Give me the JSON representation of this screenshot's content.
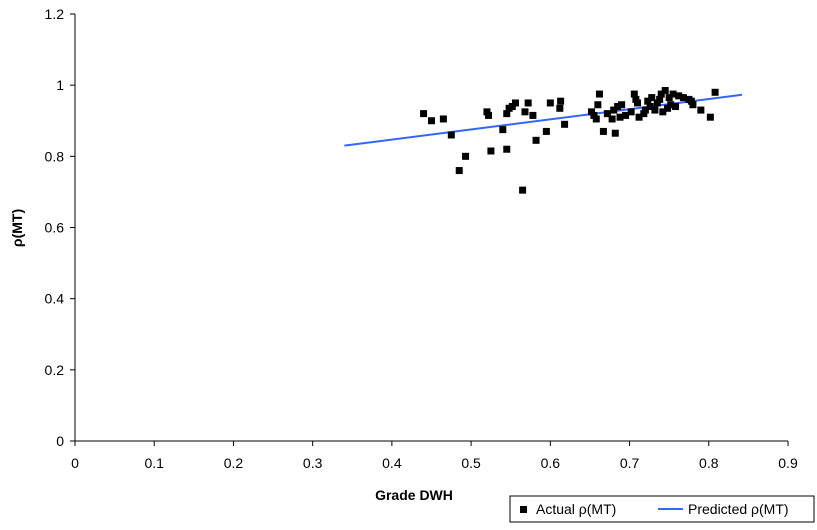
{
  "chart_data": {
    "type": "scatter",
    "title": "",
    "xlabel": "Grade DWH",
    "ylabel": "ρ(MT)",
    "xlim": [
      0,
      0.9
    ],
    "ylim": [
      0,
      1.2
    ],
    "x_ticks": [
      0,
      0.1,
      0.2,
      0.3,
      0.4,
      0.5,
      0.6,
      0.7,
      0.8,
      0.9
    ],
    "x_tick_labels": [
      "0",
      "0.1",
      "0.2",
      "0.3",
      "0.4",
      "0.5",
      "0.6",
      "0.7",
      "0.8",
      "0.9"
    ],
    "y_ticks": [
      0,
      0.2,
      0.4,
      0.6,
      0.8,
      1.0,
      1.2
    ],
    "y_tick_labels": [
      "0",
      "0.2",
      "0.4",
      "0.6",
      "0.8",
      "1",
      "1.2"
    ],
    "grid": false,
    "legend_position": "bottom-right",
    "series": [
      {
        "name": "Actual ρ(MT)",
        "kind": "scatter",
        "color": "#000000",
        "marker": "square",
        "points": [
          [
            0.44,
            0.92
          ],
          [
            0.45,
            0.9
          ],
          [
            0.465,
            0.905
          ],
          [
            0.475,
            0.86
          ],
          [
            0.485,
            0.76
          ],
          [
            0.493,
            0.8
          ],
          [
            0.52,
            0.925
          ],
          [
            0.522,
            0.915
          ],
          [
            0.525,
            0.815
          ],
          [
            0.54,
            0.875
          ],
          [
            0.545,
            0.92
          ],
          [
            0.545,
            0.82
          ],
          [
            0.548,
            0.935
          ],
          [
            0.552,
            0.94
          ],
          [
            0.556,
            0.95
          ],
          [
            0.565,
            0.705
          ],
          [
            0.568,
            0.925
          ],
          [
            0.572,
            0.95
          ],
          [
            0.578,
            0.915
          ],
          [
            0.582,
            0.845
          ],
          [
            0.595,
            0.87
          ],
          [
            0.6,
            0.95
          ],
          [
            0.612,
            0.935
          ],
          [
            0.613,
            0.955
          ],
          [
            0.618,
            0.89
          ],
          [
            0.652,
            0.925
          ],
          [
            0.655,
            0.915
          ],
          [
            0.658,
            0.905
          ],
          [
            0.66,
            0.945
          ],
          [
            0.662,
            0.975
          ],
          [
            0.667,
            0.87
          ],
          [
            0.672,
            0.92
          ],
          [
            0.678,
            0.905
          ],
          [
            0.68,
            0.93
          ],
          [
            0.682,
            0.865
          ],
          [
            0.685,
            0.94
          ],
          [
            0.688,
            0.91
          ],
          [
            0.69,
            0.945
          ],
          [
            0.695,
            0.915
          ],
          [
            0.702,
            0.925
          ],
          [
            0.706,
            0.975
          ],
          [
            0.708,
            0.96
          ],
          [
            0.71,
            0.95
          ],
          [
            0.712,
            0.91
          ],
          [
            0.718,
            0.92
          ],
          [
            0.72,
            0.93
          ],
          [
            0.723,
            0.955
          ],
          [
            0.726,
            0.94
          ],
          [
            0.728,
            0.965
          ],
          [
            0.732,
            0.93
          ],
          [
            0.735,
            0.95
          ],
          [
            0.738,
            0.96
          ],
          [
            0.74,
            0.975
          ],
          [
            0.742,
            0.925
          ],
          [
            0.745,
            0.985
          ],
          [
            0.748,
            0.935
          ],
          [
            0.75,
            0.965
          ],
          [
            0.752,
            0.945
          ],
          [
            0.755,
            0.975
          ],
          [
            0.758,
            0.94
          ],
          [
            0.762,
            0.97
          ],
          [
            0.768,
            0.965
          ],
          [
            0.775,
            0.96
          ],
          [
            0.778,
            0.955
          ],
          [
            0.78,
            0.945
          ],
          [
            0.79,
            0.93
          ],
          [
            0.802,
            0.91
          ],
          [
            0.808,
            0.98
          ]
        ]
      },
      {
        "name": "Predicted ρ(MT)",
        "kind": "line",
        "color": "#3366ff",
        "points": [
          [
            0.34,
            0.83
          ],
          [
            0.842,
            0.973
          ]
        ]
      }
    ]
  }
}
